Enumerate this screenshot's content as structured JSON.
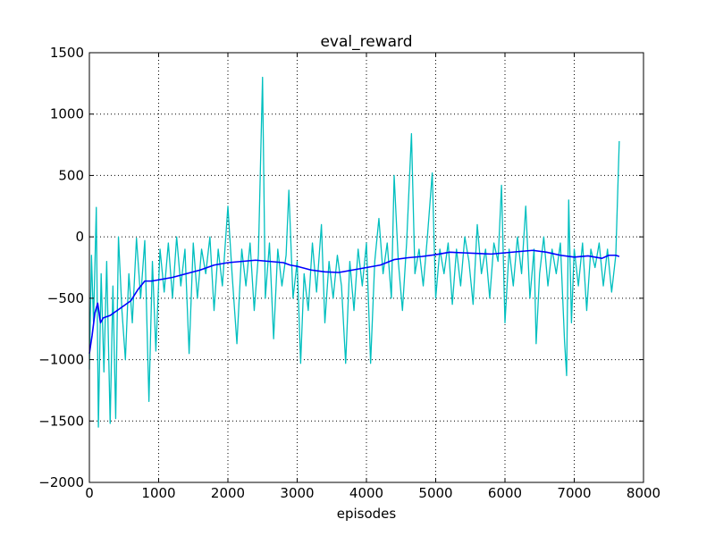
{
  "chart_data": {
    "type": "line",
    "title": "eval_reward",
    "x_label": "episodes",
    "xlim": [
      0,
      8000
    ],
    "ylim": [
      -2000,
      1500
    ],
    "xticks": [
      0,
      1000,
      2000,
      3000,
      4000,
      5000,
      6000,
      7000,
      8000
    ],
    "yticks": [
      {
        "value": -2000,
        "label": "−2000"
      },
      {
        "value": -1500,
        "label": "−1500"
      },
      {
        "value": -1000,
        "label": "−1000"
      },
      {
        "value": -500,
        "label": "−500"
      },
      0,
      500,
      1000,
      1500
    ],
    "grid": true,
    "series": [
      {
        "color": "#00bfbf",
        "x": [
          0,
          30,
          60,
          100,
          130,
          170,
          210,
          250,
          300,
          340,
          380,
          420,
          470,
          520,
          570,
          620,
          680,
          740,
          800,
          860,
          910,
          960,
          1020,
          1080,
          1140,
          1200,
          1260,
          1320,
          1380,
          1440,
          1500,
          1560,
          1620,
          1680,
          1740,
          1800,
          1860,
          1920,
          2000,
          2060,
          2130,
          2200,
          2260,
          2320,
          2380,
          2440,
          2500,
          2540,
          2600,
          2660,
          2720,
          2780,
          2840,
          2880,
          2940,
          3000,
          3050,
          3100,
          3160,
          3220,
          3280,
          3350,
          3400,
          3460,
          3520,
          3580,
          3640,
          3700,
          3760,
          3820,
          3880,
          3940,
          4000,
          4060,
          4120,
          4180,
          4240,
          4300,
          4360,
          4400,
          4460,
          4520,
          4580,
          4650,
          4700,
          4760,
          4820,
          4880,
          4950,
          5000,
          5060,
          5120,
          5180,
          5240,
          5300,
          5360,
          5420,
          5480,
          5540,
          5600,
          5660,
          5720,
          5780,
          5840,
          5900,
          5950,
          6000,
          6060,
          6120,
          6180,
          6240,
          6300,
          6360,
          6420,
          6450,
          6500,
          6560,
          6620,
          6680,
          6740,
          6800,
          6860,
          6890,
          6920,
          6960,
          7000,
          7060,
          7120,
          7180,
          7240,
          7300,
          7360,
          7420,
          7480,
          7540,
          7600,
          7650
        ],
        "values": [
          -1080,
          -150,
          -700,
          240,
          -1550,
          -300,
          -1100,
          -200,
          -1520,
          -400,
          -1480,
          0,
          -600,
          -1000,
          -300,
          -700,
          -10,
          -500,
          -30,
          -1340,
          -200,
          -930,
          -100,
          -450,
          -50,
          -500,
          0,
          -400,
          -100,
          -950,
          -50,
          -500,
          -100,
          -300,
          0,
          -600,
          -100,
          -400,
          250,
          -300,
          -870,
          -100,
          -400,
          -50,
          -600,
          -150,
          1300,
          -500,
          -50,
          -830,
          -100,
          -400,
          -150,
          380,
          -500,
          -200,
          -1030,
          -300,
          -600,
          -50,
          -450,
          100,
          -700,
          -200,
          -500,
          -150,
          -400,
          -1030,
          -200,
          -600,
          -100,
          -400,
          -50,
          -1030,
          -200,
          150,
          -300,
          -50,
          -500,
          500,
          -200,
          -600,
          -50,
          840,
          -300,
          -100,
          -400,
          0,
          520,
          -500,
          -100,
          -300,
          -50,
          -550,
          -100,
          -400,
          0,
          -200,
          -550,
          100,
          -300,
          -100,
          -500,
          -50,
          -200,
          420,
          -700,
          -100,
          -400,
          0,
          -300,
          250,
          -500,
          -100,
          -870,
          -300,
          0,
          -400,
          -100,
          -300,
          -50,
          -850,
          -1130,
          300,
          -700,
          -100,
          -400,
          -50,
          -600,
          -100,
          -250,
          -50,
          -400,
          -100,
          -450,
          -150,
          780
        ]
      },
      {
        "color": "#0000ff",
        "x": [
          0,
          40,
          80,
          120,
          160,
          200,
          300,
          400,
          500,
          600,
          700,
          800,
          900,
          1000,
          1200,
          1400,
          1600,
          1800,
          2000,
          2200,
          2400,
          2600,
          2800,
          2900,
          3000,
          3200,
          3400,
          3600,
          3800,
          4000,
          4200,
          4400,
          4600,
          4800,
          5000,
          5200,
          5400,
          5600,
          5800,
          6000,
          6200,
          6400,
          6600,
          6800,
          7000,
          7200,
          7400,
          7500,
          7600,
          7650
        ],
        "values": [
          -950,
          -800,
          -620,
          -540,
          -700,
          -660,
          -640,
          -600,
          -560,
          -520,
          -430,
          -360,
          -360,
          -350,
          -330,
          -300,
          -270,
          -230,
          -210,
          -200,
          -190,
          -200,
          -210,
          -230,
          -240,
          -270,
          -285,
          -290,
          -270,
          -250,
          -230,
          -185,
          -170,
          -160,
          -145,
          -125,
          -130,
          -135,
          -140,
          -130,
          -120,
          -110,
          -125,
          -150,
          -165,
          -155,
          -175,
          -150,
          -150,
          -160
        ]
      }
    ]
  }
}
